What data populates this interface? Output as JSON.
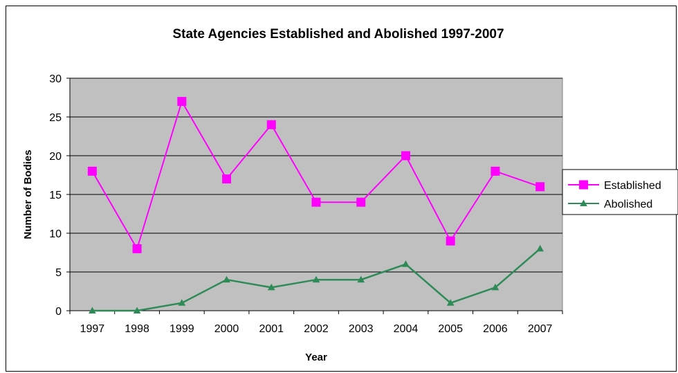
{
  "chart_data": {
    "type": "line",
    "title": "State Agencies Established and Abolished 1997-2007",
    "xlabel": "Year",
    "ylabel": "Number of Bodies",
    "categories": [
      "1997",
      "1998",
      "1999",
      "2000",
      "2001",
      "2002",
      "2003",
      "2004",
      "2005",
      "2006",
      "2007"
    ],
    "ylim": [
      0,
      30
    ],
    "yticks": [
      "0",
      "5",
      "10",
      "15",
      "20",
      "25",
      "30"
    ],
    "grid": true,
    "legend_position": "right",
    "plot_background": "#c0c0c0",
    "series": [
      {
        "name": "Established",
        "values": [
          18,
          8,
          27,
          17,
          24,
          14,
          14,
          20,
          9,
          18,
          16
        ],
        "color": "#ff00ff",
        "marker": "square"
      },
      {
        "name": "Abolished",
        "values": [
          0,
          0,
          1,
          4,
          3,
          4,
          4,
          6,
          1,
          3,
          8
        ],
        "color": "#2e8b57",
        "marker": "triangle"
      }
    ]
  }
}
